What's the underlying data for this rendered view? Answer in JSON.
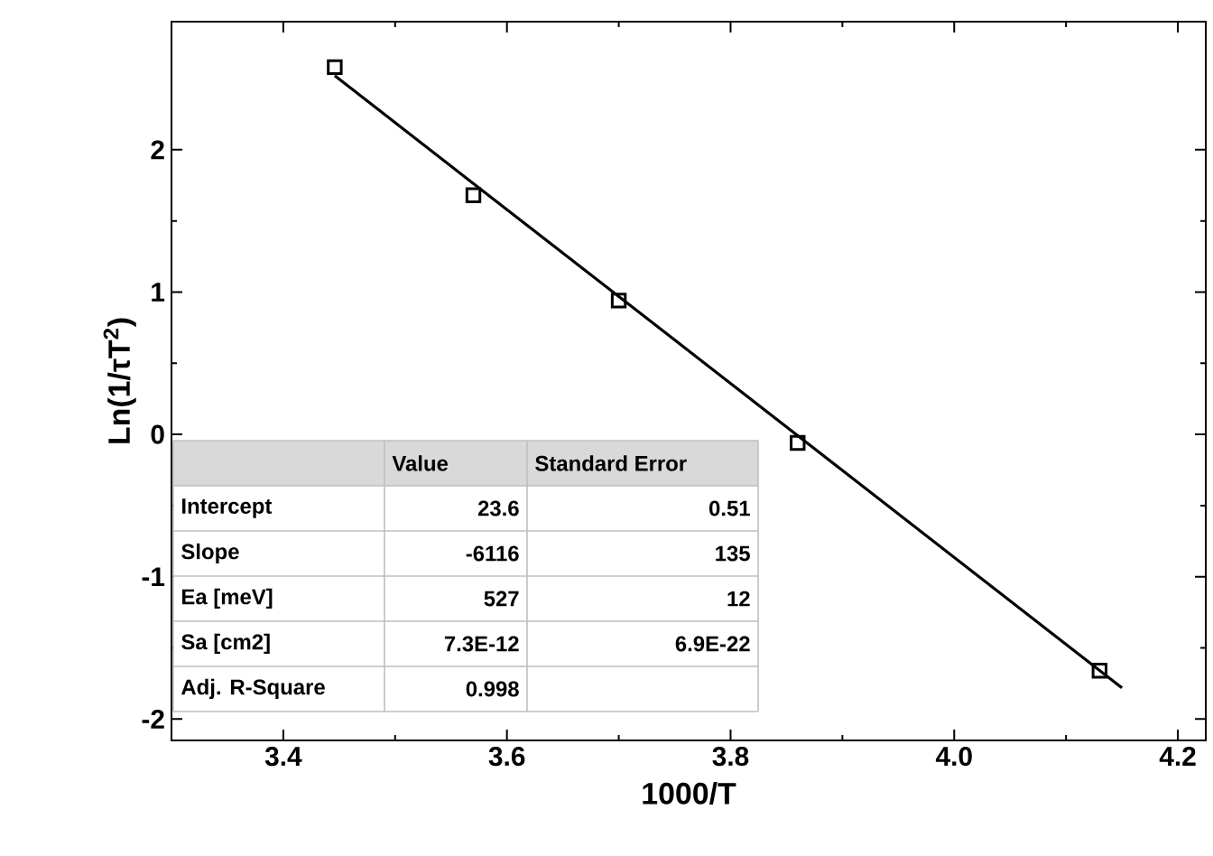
{
  "chart_data": {
    "type": "scatter",
    "xlabel": "1000/T",
    "ylabel": "Ln(1/τT$^{2}$)",
    "xlim": [
      3.3,
      4.225
    ],
    "ylim": [
      -2.15,
      2.9
    ],
    "xticks": [
      3.4,
      3.6,
      3.8,
      {
        "value": 4,
        "label": "4.0"
      },
      4.2
    ],
    "yticks": [
      -2,
      -1,
      0,
      1,
      2
    ],
    "grid": false,
    "marker": "square",
    "series": [
      {
        "color": "#000000",
        "x": [
          3.446,
          3.57,
          3.7,
          3.86,
          4.13
        ],
        "values": [
          2.58,
          1.68,
          0.94,
          -0.06,
          -1.66
        ]
      },
      {
        "type": "line",
        "color": "#000000",
        "marker": "none",
        "line_style": "solid",
        "x": [
          3.446,
          4.15
        ],
        "values": [
          2.52,
          -1.78
        ]
      }
    ],
    "annotations": [
      "Value",
      "Standard Error",
      "Intercept",
      "23.6",
      "0.51",
      "Slope",
      "-6116",
      "135",
      "Ea [meV]",
      "527",
      "12",
      "Sa [cm2]",
      "7.3E-12",
      "6.9E-22",
      "Adj. R-Square",
      "0.998"
    ]
  }
}
